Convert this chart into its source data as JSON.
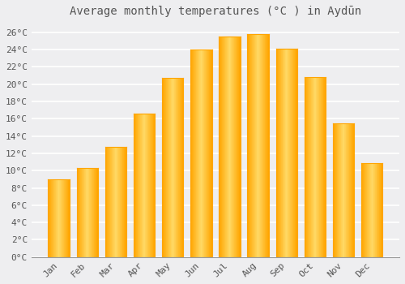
{
  "title": "Average monthly temperatures (°C ) in Aydūn",
  "months": [
    "Jan",
    "Feb",
    "Mar",
    "Apr",
    "May",
    "Jun",
    "Jul",
    "Aug",
    "Sep",
    "Oct",
    "Nov",
    "Dec"
  ],
  "values": [
    9.0,
    10.3,
    12.7,
    16.6,
    20.7,
    24.0,
    25.5,
    25.8,
    24.1,
    20.8,
    15.5,
    10.9
  ],
  "bar_color_center": "#FFD966",
  "bar_color_edge": "#FFA500",
  "background_color": "#EEEEF0",
  "grid_color": "#FFFFFF",
  "text_color": "#555555",
  "ylim": [
    0,
    27
  ],
  "ytick_step": 2,
  "title_fontsize": 10,
  "tick_fontsize": 8,
  "font_family": "monospace"
}
